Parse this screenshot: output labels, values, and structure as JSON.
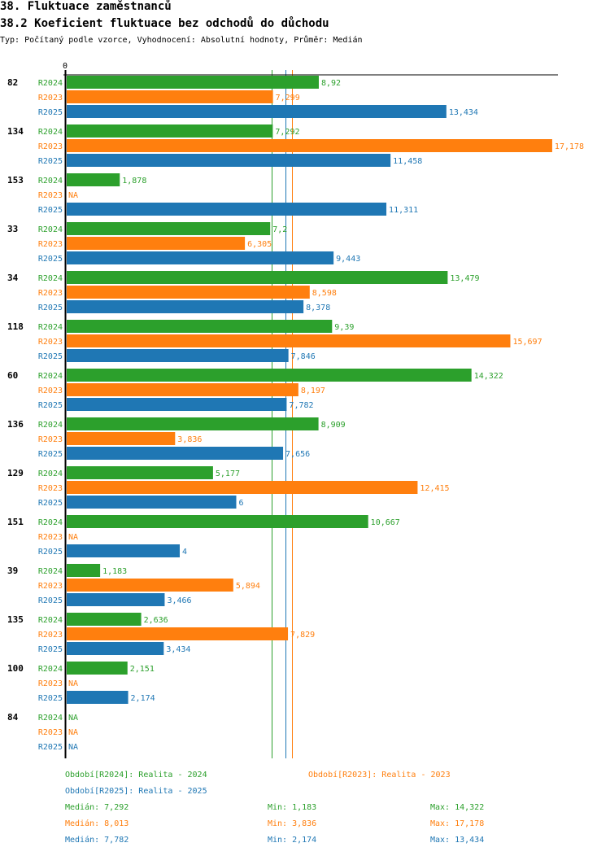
{
  "header": {
    "title": "38. Fluktuace zaměstnanců",
    "subtitle": "38.2 Koeficient fluktuace bez odchodů do důchodu",
    "description": "Typ: Počítaný podle vzorce, Vyhodnocení: Absolutní hodnoty, Průměr: Medián"
  },
  "colors": {
    "R2024": "#2ca02c",
    "R2023": "#ff7f0e",
    "R2025": "#1f77b4",
    "axis": "#000000"
  },
  "chart_data": {
    "type": "bar",
    "orientation": "horizontal",
    "title": "38.2 Koeficient fluktuace bez odchodů do důchodu",
    "xlabel": "",
    "ylabel": "",
    "x_tick_labels": [
      "0"
    ],
    "xlim": [
      0,
      17.5
    ],
    "na_label": "NA",
    "categories": [
      "82",
      "134",
      "153",
      "33",
      "34",
      "118",
      "60",
      "136",
      "129",
      "151",
      "39",
      "135",
      "100",
      "84"
    ],
    "series": [
      {
        "name": "R2024",
        "values": [
          8.92,
          7.292,
          1.878,
          7.2,
          13.479,
          9.39,
          14.322,
          8.909,
          5.177,
          10.667,
          1.183,
          2.636,
          2.151,
          null
        ],
        "labels": [
          "8,92",
          "7,292",
          "1,878",
          "7,2",
          "13,479",
          "9,39",
          "14,322",
          "8,909",
          "5,177",
          "10,667",
          "1,183",
          "2,636",
          "2,151",
          "NA"
        ]
      },
      {
        "name": "R2023",
        "values": [
          7.299,
          17.178,
          null,
          6.305,
          8.598,
          15.697,
          8.197,
          3.836,
          12.415,
          null,
          5.894,
          7.829,
          null,
          null
        ],
        "labels": [
          "7,299",
          "17,178",
          "NA",
          "6,305",
          "8,598",
          "15,697",
          "8,197",
          "3,836",
          "12,415",
          "NA",
          "5,894",
          "7,829",
          "NA",
          "NA"
        ]
      },
      {
        "name": "R2025",
        "values": [
          13.434,
          11.458,
          11.311,
          9.443,
          8.378,
          7.846,
          7.782,
          7.656,
          6,
          4,
          3.466,
          3.434,
          2.174,
          null
        ],
        "labels": [
          "13,434",
          "11,458",
          "11,311",
          "9,443",
          "8,378",
          "7,846",
          "7,782",
          "7,656",
          "6",
          "4",
          "3,466",
          "3,434",
          "2,174",
          "NA"
        ]
      }
    ],
    "median_lines": [
      {
        "series": "R2024",
        "value": 7.292
      },
      {
        "series": "R2025",
        "value": 7.782
      },
      {
        "series": "R2023",
        "value": 8.013
      }
    ],
    "legend": [
      {
        "series": "R2024",
        "text": "Období[R2024]: Realita - 2024"
      },
      {
        "series": "R2023",
        "text": "Období[R2023]: Realita - 2023"
      },
      {
        "series": "R2025",
        "text": "Období[R2025]: Realita - 2025"
      }
    ],
    "legend_position": "bottom",
    "stats": [
      {
        "series": "R2024",
        "median": "Medián: 7,292",
        "min": "Min: 1,183",
        "max": "Max: 14,322"
      },
      {
        "series": "R2023",
        "median": "Medián: 8,013",
        "min": "Min: 3,836",
        "max": "Max: 17,178"
      },
      {
        "series": "R2025",
        "median": "Medián: 7,782",
        "min": "Min: 2,174",
        "max": "Max: 13,434"
      }
    ]
  }
}
